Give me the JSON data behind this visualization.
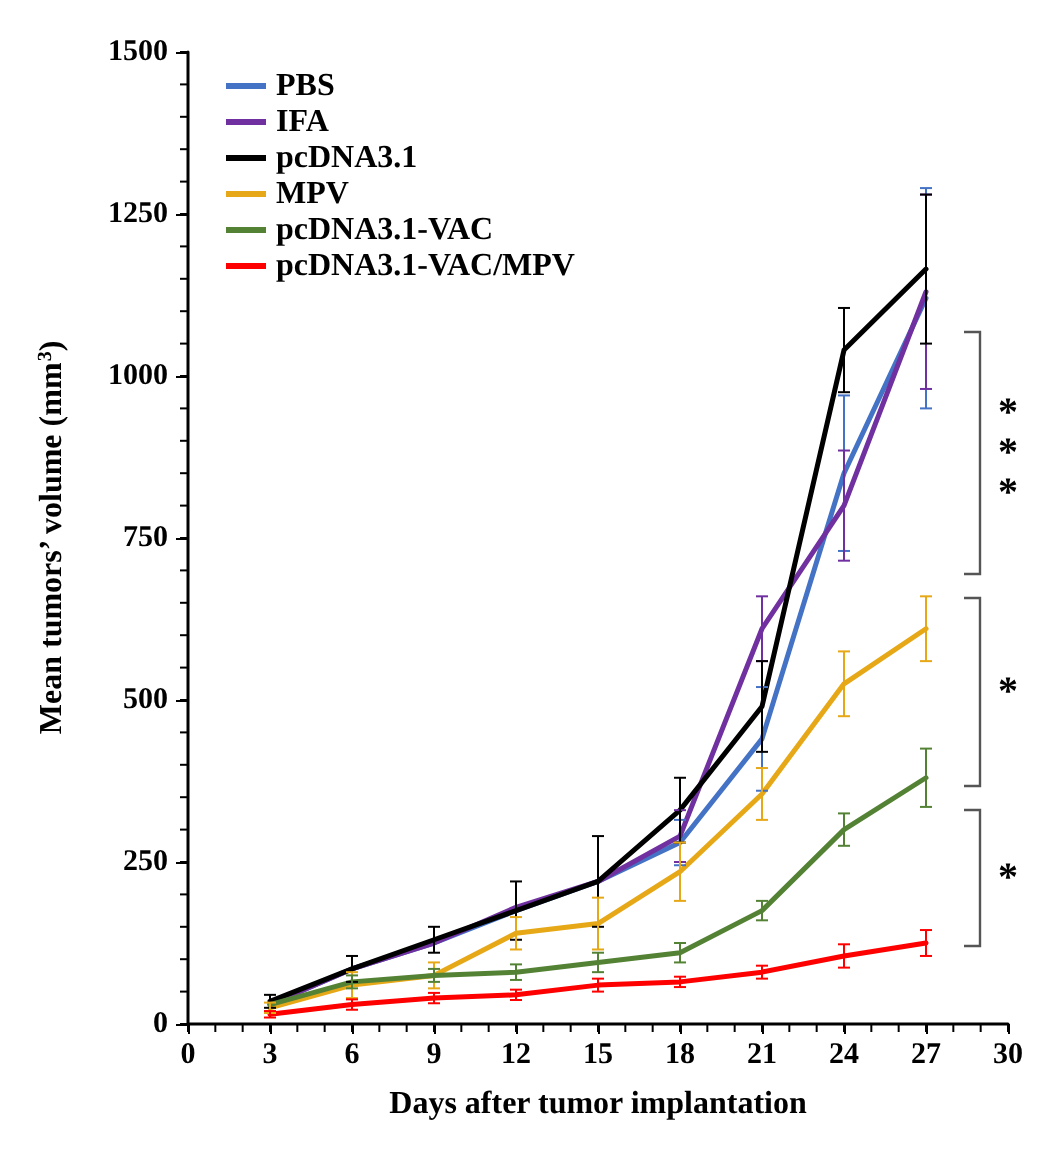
{
  "chart_data": {
    "type": "line",
    "xlabel": "Days after tumor implantation",
    "ylabel": "Mean tumors’ volume (mm$^{3}$)",
    "x": [
      3,
      6,
      9,
      12,
      15,
      18,
      21,
      24,
      27
    ],
    "xlim": [
      0,
      30
    ],
    "xticks": [
      0,
      3,
      6,
      9,
      12,
      15,
      18,
      21,
      24,
      27,
      30
    ],
    "ylim": [
      0,
      1500
    ],
    "yticks": [
      0,
      250,
      500,
      750,
      1000,
      1250,
      1500
    ],
    "grid": false,
    "legend": "top left",
    "marker": "none",
    "line_style": "solid",
    "series": [
      {
        "name": "PBS",
        "color": "#4472c4",
        "values": [
          30,
          85,
          125,
          175,
          220,
          280,
          440,
          850,
          1120
        ],
        "errors": [
          null,
          null,
          null,
          null,
          null,
          35,
          80,
          120,
          170
        ]
      },
      {
        "name": "IFA",
        "color": "#7030a0",
        "values": [
          30,
          85,
          125,
          180,
          220,
          290,
          610,
          800,
          1130
        ],
        "errors": [
          null,
          null,
          null,
          null,
          null,
          40,
          50,
          85,
          150
        ]
      },
      {
        "name": "pcDNA3.1",
        "color": "#000000",
        "values": [
          35,
          85,
          130,
          175,
          220,
          330,
          490,
          1040,
          1165
        ],
        "errors": [
          10,
          20,
          20,
          45,
          70,
          50,
          70,
          65,
          115
        ]
      },
      {
        "name": "MPV",
        "color": "#e6a817",
        "values": [
          25,
          60,
          75,
          140,
          155,
          235,
          355,
          525,
          610
        ],
        "errors": [
          8,
          20,
          20,
          25,
          40,
          45,
          40,
          50,
          50
        ]
      },
      {
        "name": "pcDNA3.1-VAC",
        "color": "#548235",
        "values": [
          30,
          65,
          75,
          80,
          95,
          110,
          175,
          300,
          380
        ],
        "errors": [
          null,
          10,
          10,
          12,
          15,
          15,
          15,
          25,
          45
        ]
      },
      {
        "name": "pcDNA3.1-VAC/MPV",
        "color": "#ff0000",
        "values": [
          15,
          30,
          40,
          45,
          60,
          65,
          80,
          105,
          125
        ],
        "errors": [
          5,
          8,
          8,
          8,
          10,
          8,
          10,
          18,
          20
        ]
      }
    ],
    "annotations": [
      "***",
      "*",
      "*"
    ]
  }
}
